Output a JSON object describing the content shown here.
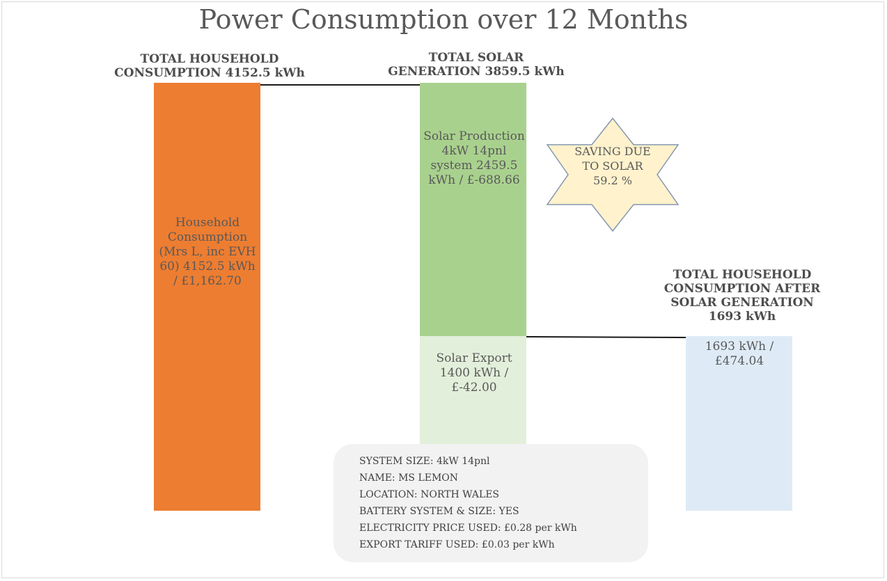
{
  "chart_data": {
    "type": "bar",
    "title": "Power Consumption over 12 Months",
    "unit": "kWh",
    "headings": {
      "household": "TOTAL HOUSEHOLD CONSUMPTION 4152.5 kWh",
      "solar": "TOTAL SOLAR GENERATION 3859.5 kWh",
      "after": "TOTAL HOUSEHOLD CONSUMPTION AFTER SOLAR GENERATION 1693 kWh"
    },
    "bars": [
      {
        "key": "household",
        "label": "Household Consumption (Mrs L, inc EVH 60) 4152.5 kWh / £1,162.70",
        "value": 4152.5,
        "color": "#ed7d31"
      },
      {
        "key": "solar_production",
        "label": "Solar Production 4kW 14pnl system 2459.5 kWh / £-688.66",
        "value": 2459.5,
        "color": "#a9d18e"
      },
      {
        "key": "solar_export",
        "label": "Solar Export 1400 kWh / £-42.00",
        "value": 1400,
        "color": "#e2efda"
      },
      {
        "key": "after",
        "label": "1693 kWh / £474.04",
        "value": 1693,
        "color": "#deebf7"
      }
    ],
    "saving": {
      "text": "SAVING DUE TO SOLAR 59.2 %",
      "value": 59.2,
      "fill": "#fff2cc",
      "stroke": "#8497b0"
    }
  },
  "info_box": [
    "SYSTEM SIZE: 4kW 14pnl",
    "NAME: MS LEMON",
    "LOCATION: NORTH WALES",
    "BATTERY SYSTEM & SIZE: YES",
    "ELECTRICITY PRICE USED: £0.28 per kWh",
    "EXPORT TARIFF USED: £0.03 per kWh"
  ]
}
